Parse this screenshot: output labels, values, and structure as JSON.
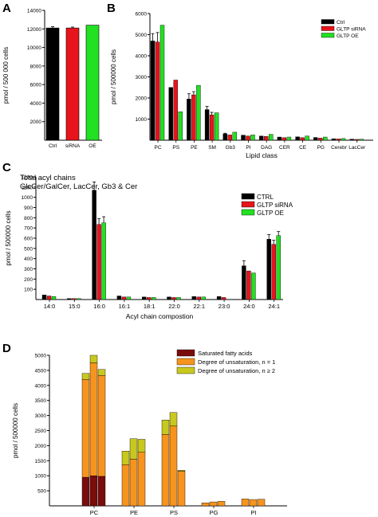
{
  "chart_data": [
    {
      "panel": "A",
      "type": "bar",
      "title": "",
      "xlabel": "",
      "ylabel": "pmol / 500 000 cells",
      "ylim": [
        0,
        14000
      ],
      "yticks": [
        2000,
        4000,
        6000,
        8000,
        10000,
        12000,
        14000
      ],
      "categories": [
        "Ctrl",
        "siRNA",
        "OE"
      ],
      "values": [
        12100,
        12100,
        12400
      ],
      "errors": [
        150,
        100,
        0
      ],
      "colors": [
        "#000000",
        "#e8141b",
        "#22e022"
      ]
    },
    {
      "panel": "B",
      "type": "bar",
      "xlabel": "Lipid class",
      "ylabel": "pmol / 500000 cells",
      "ylim": [
        0,
        6000
      ],
      "yticks": [
        1000,
        2000,
        3000,
        4000,
        5000,
        6000
      ],
      "categories": [
        "PC",
        "PS",
        "PE",
        "SM",
        "Gb3",
        "PI",
        "DAG",
        "CER",
        "CE",
        "PG",
        "Cerebr",
        "LacCer"
      ],
      "series": [
        {
          "name": "Ctrl",
          "color": "#000000",
          "values": [
            4700,
            2500,
            1950,
            1450,
            300,
            240,
            200,
            150,
            160,
            130,
            70,
            50
          ],
          "errors": [
            350,
            0,
            250,
            150,
            30,
            0,
            0,
            0,
            0,
            0,
            0,
            0
          ]
        },
        {
          "name": "GLTP siRNA",
          "color": "#e8141b",
          "values": [
            4650,
            2850,
            2150,
            1200,
            250,
            200,
            180,
            120,
            120,
            100,
            60,
            40
          ],
          "errors": [
            450,
            0,
            150,
            120,
            0,
            0,
            0,
            0,
            0,
            0,
            0,
            0
          ]
        },
        {
          "name": "GLTP OE",
          "color": "#22e022",
          "values": [
            5450,
            1350,
            2600,
            1300,
            380,
            250,
            280,
            150,
            200,
            150,
            80,
            50
          ],
          "errors": [
            0,
            0,
            0,
            0,
            0,
            0,
            0,
            0,
            0,
            0,
            0,
            0
          ]
        }
      ],
      "legend_position": "top-right"
    },
    {
      "panel": "C",
      "type": "bar",
      "annotation_lines": [
        "Total acyl chains",
        "GlcCer/GalCer, LacCer, Gb3 & Cer"
      ],
      "xlabel": "Acyl chain compostion",
      "ylabel": "pmol / 500000 cells",
      "ylim": [
        0,
        1200
      ],
      "yticks": [
        100,
        200,
        300,
        400,
        500,
        600,
        700,
        800,
        900,
        1000,
        1100,
        1200
      ],
      "categories": [
        "14:0",
        "15:0",
        "16:0",
        "16:1",
        "18:1",
        "22:0",
        "22:1",
        "23:0",
        "24:0",
        "24:1"
      ],
      "series": [
        {
          "name": "CTRL",
          "color": "#000000",
          "values": [
            45,
            10,
            1070,
            35,
            25,
            25,
            30,
            30,
            330,
            590
          ],
          "errors": [
            0,
            0,
            80,
            0,
            0,
            0,
            0,
            0,
            50,
            45
          ]
        },
        {
          "name": "GLTP siRNA",
          "color": "#e8141b",
          "values": [
            35,
            10,
            735,
            25,
            20,
            20,
            25,
            20,
            280,
            540
          ],
          "errors": [
            0,
            0,
            55,
            0,
            0,
            0,
            0,
            0,
            0,
            40
          ]
        },
        {
          "name": "GLTP OE",
          "color": "#22e022",
          "values": [
            30,
            10,
            750,
            25,
            20,
            20,
            25,
            0,
            260,
            625
          ],
          "errors": [
            0,
            0,
            60,
            0,
            0,
            0,
            0,
            0,
            0,
            40
          ]
        }
      ],
      "legend_position": "top-right"
    },
    {
      "panel": "D",
      "type": "bar",
      "stacked": true,
      "xlabel": "",
      "ylabel": "pmol / 500000 cells",
      "ylim": [
        0,
        5000
      ],
      "yticks": [
        500,
        1000,
        1500,
        2000,
        2500,
        3000,
        3500,
        4000,
        4500,
        5000
      ],
      "categories": [
        "PC",
        "PE",
        "PS",
        "PG",
        "PI"
      ],
      "bars_per_category": 3,
      "series": [
        {
          "name": "Saturated fatty acids",
          "color": "#7a0c0c",
          "values": [
            [
              950,
              1000,
              980
            ],
            [
              0,
              0,
              0
            ],
            [
              0,
              0,
              0
            ],
            [
              0,
              0,
              0
            ],
            [
              0,
              0,
              0
            ]
          ]
        },
        {
          "name": "Degree of unsaturation, n = 1",
          "color": "#f7941d",
          "values": [
            [
              3250,
              3750,
              3350
            ],
            [
              1370,
              1550,
              1780
            ],
            [
              2370,
              2650,
              1150
            ],
            [
              100,
              130,
              150
            ],
            [
              230,
              210,
              220
            ]
          ]
        },
        {
          "name": "Degree of unsaturation, n ≥ 2",
          "color": "#c8c81e",
          "values": [
            [
              200,
              250,
              200
            ],
            [
              450,
              680,
              430
            ],
            [
              480,
              450,
              30
            ],
            [
              0,
              0,
              0
            ],
            [
              0,
              0,
              0
            ]
          ]
        }
      ],
      "legend_position": "top-center"
    }
  ],
  "panel_labels": [
    "A",
    "B",
    "C",
    "D"
  ]
}
